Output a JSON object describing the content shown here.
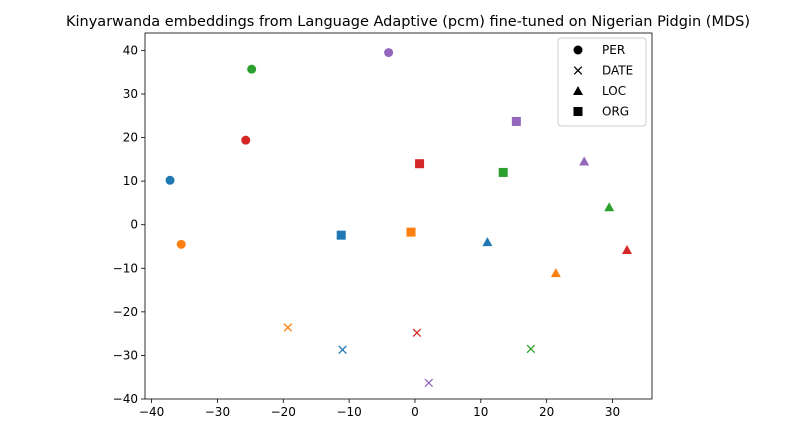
{
  "chart_data": {
    "type": "scatter",
    "title": "Kinyarwanda embeddings from Language Adaptive (pcm) fine-tuned on Nigerian Pidgin (MDS)",
    "xlabel": "",
    "ylabel": "",
    "xlim": [
      -41,
      36
    ],
    "ylim": [
      -40,
      44
    ],
    "xticks": [
      -40,
      -30,
      -20,
      -10,
      0,
      10,
      20,
      30
    ],
    "yticks": [
      -40,
      -30,
      -20,
      -10,
      0,
      10,
      20,
      30,
      40
    ],
    "xtick_labels": [
      "−40",
      "−30",
      "−20",
      "−10",
      "0",
      "10",
      "20",
      "30"
    ],
    "ytick_labels": [
      "−40",
      "−30",
      "−20",
      "−10",
      "0",
      "10",
      "20",
      "30",
      "40"
    ],
    "grid": false,
    "legend_position": "top-right",
    "legend": [
      {
        "label": "PER",
        "marker": "circle"
      },
      {
        "label": "DATE",
        "marker": "x"
      },
      {
        "label": "LOC",
        "marker": "triangle"
      },
      {
        "label": "ORG",
        "marker": "square"
      }
    ],
    "colors": {
      "blue": "#1f77b4",
      "orange": "#ff7f0e",
      "green": "#2ca02c",
      "red": "#d62728",
      "purple": "#9467bd"
    },
    "points": [
      {
        "x": -37.2,
        "y": 10.2,
        "marker": "circle",
        "color": "blue"
      },
      {
        "x": -35.5,
        "y": -4.5,
        "marker": "circle",
        "color": "orange"
      },
      {
        "x": -24.8,
        "y": 35.7,
        "marker": "circle",
        "color": "green"
      },
      {
        "x": -25.7,
        "y": 19.4,
        "marker": "circle",
        "color": "red"
      },
      {
        "x": -4.0,
        "y": 39.5,
        "marker": "circle",
        "color": "purple"
      },
      {
        "x": -11.0,
        "y": -28.7,
        "marker": "x",
        "color": "blue"
      },
      {
        "x": -19.3,
        "y": -23.6,
        "marker": "x",
        "color": "orange"
      },
      {
        "x": 17.6,
        "y": -28.5,
        "marker": "x",
        "color": "green"
      },
      {
        "x": 0.3,
        "y": -24.8,
        "marker": "x",
        "color": "red"
      },
      {
        "x": 2.1,
        "y": -36.3,
        "marker": "x",
        "color": "purple"
      },
      {
        "x": 11.0,
        "y": -4.0,
        "marker": "triangle",
        "color": "blue"
      },
      {
        "x": 21.4,
        "y": -11.1,
        "marker": "triangle",
        "color": "orange"
      },
      {
        "x": 29.5,
        "y": 4.0,
        "marker": "triangle",
        "color": "green"
      },
      {
        "x": 32.2,
        "y": -5.8,
        "marker": "triangle",
        "color": "red"
      },
      {
        "x": 25.7,
        "y": 14.5,
        "marker": "triangle",
        "color": "purple"
      },
      {
        "x": -11.2,
        "y": -2.4,
        "marker": "square",
        "color": "blue"
      },
      {
        "x": -0.6,
        "y": -1.7,
        "marker": "square",
        "color": "orange"
      },
      {
        "x": 13.4,
        "y": 12.0,
        "marker": "square",
        "color": "green"
      },
      {
        "x": 0.7,
        "y": 14.0,
        "marker": "square",
        "color": "red"
      },
      {
        "x": 15.4,
        "y": 23.7,
        "marker": "square",
        "color": "purple"
      }
    ]
  }
}
